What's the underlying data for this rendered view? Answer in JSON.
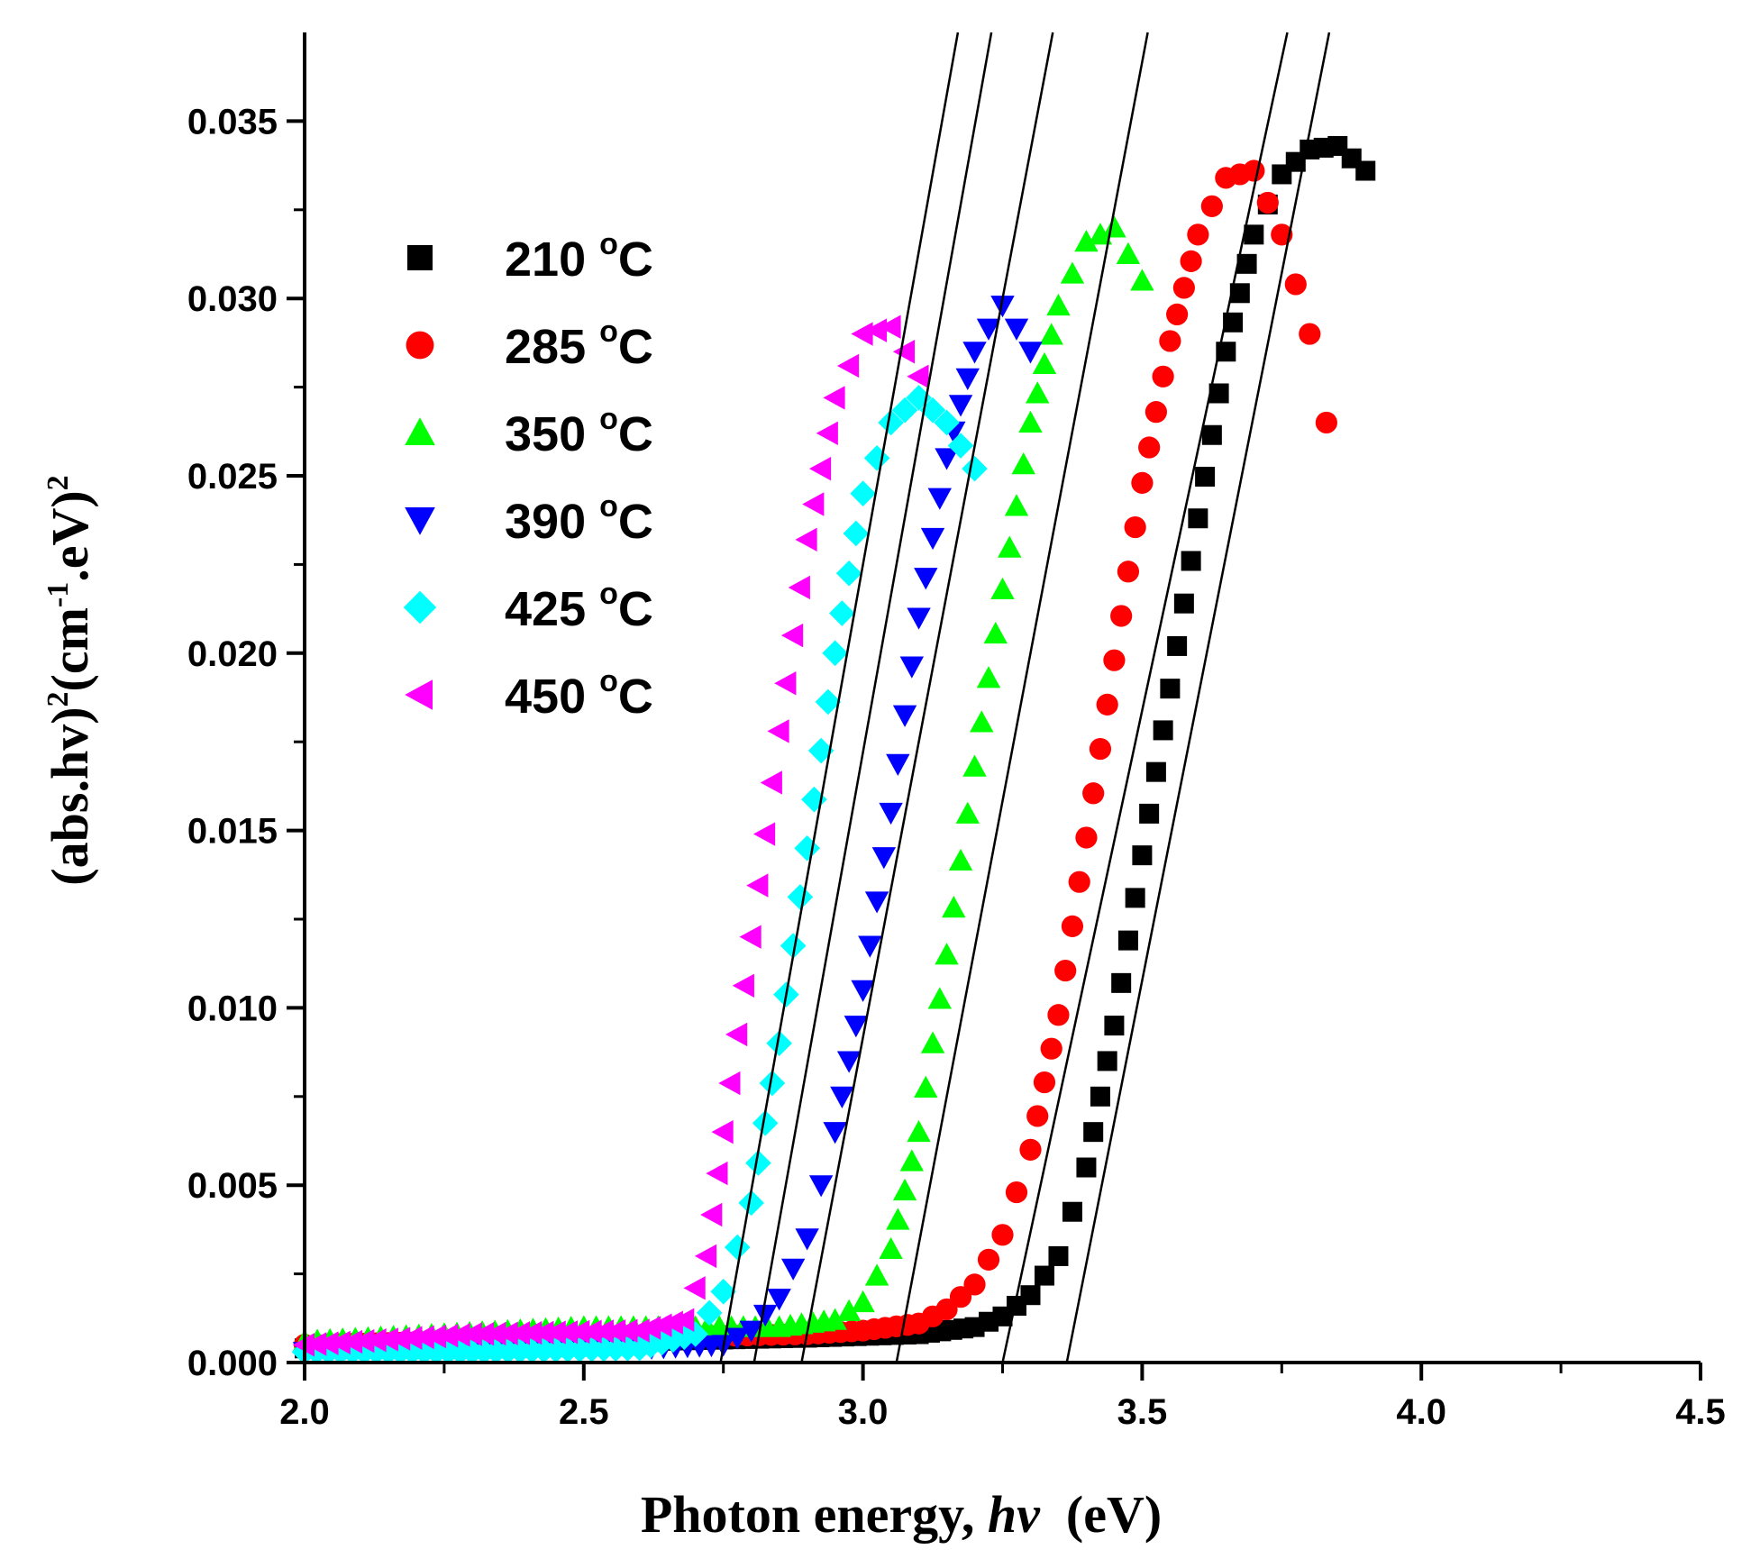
{
  "chart_data": {
    "type": "scatter",
    "title": "",
    "xlabel": {
      "prefix": "Photon energy, ",
      "italic": "hν",
      "suffix": "  (eV)"
    },
    "ylabel": {
      "part1": "(abs.hv)",
      "sup1": "2",
      "part2": "(cm",
      "sup2": "-1",
      "part3": ".eV)",
      "sup3": "2"
    },
    "xlim": [
      2.0,
      4.5
    ],
    "ylim": [
      0.0,
      0.0375
    ],
    "xticks": [
      2.0,
      2.5,
      3.0,
      3.5,
      4.0,
      4.5
    ],
    "xtick_labels": [
      "2.0",
      "2.5",
      "3.0",
      "3.5",
      "4.0",
      "4.5"
    ],
    "yticks": [
      0.0,
      0.005,
      0.01,
      0.015,
      0.02,
      0.025,
      0.03,
      0.035
    ],
    "ytick_labels": [
      "0.000",
      "0.005",
      "0.010",
      "0.015",
      "0.020",
      "0.025",
      "0.030",
      "0.035"
    ],
    "legend_position": "upper-left",
    "series": [
      {
        "name": "210",
        "unit_sup": "o",
        "unit": "C",
        "marker": "square",
        "color": "#000000",
        "points": [
          [
            2.0,
            0.0004
          ],
          [
            2.3,
            0.0005
          ],
          [
            2.6,
            0.0006
          ],
          [
            2.9,
            0.0007
          ],
          [
            3.1,
            0.0008
          ],
          [
            3.2,
            0.001
          ],
          [
            3.25,
            0.0013
          ],
          [
            3.3,
            0.0019
          ],
          [
            3.35,
            0.003
          ],
          [
            3.4,
            0.0055
          ],
          [
            3.45,
            0.0095
          ],
          [
            3.5,
            0.0143
          ],
          [
            3.55,
            0.019
          ],
          [
            3.6,
            0.0238
          ],
          [
            3.65,
            0.0285
          ],
          [
            3.7,
            0.0318
          ],
          [
            3.75,
            0.0335
          ],
          [
            3.8,
            0.0342
          ],
          [
            3.85,
            0.0343
          ],
          [
            3.9,
            0.0336
          ]
        ]
      },
      {
        "name": "285",
        "unit_sup": "o",
        "unit": "C",
        "marker": "circle",
        "color": "#ff0000",
        "points": [
          [
            2.0,
            0.0005
          ],
          [
            2.3,
            0.0006
          ],
          [
            2.6,
            0.0007
          ],
          [
            2.9,
            0.0008
          ],
          [
            3.0,
            0.0009
          ],
          [
            3.1,
            0.0011
          ],
          [
            3.15,
            0.0015
          ],
          [
            3.2,
            0.0022
          ],
          [
            3.25,
            0.0036
          ],
          [
            3.3,
            0.006
          ],
          [
            3.35,
            0.0098
          ],
          [
            3.4,
            0.0148
          ],
          [
            3.45,
            0.0198
          ],
          [
            3.5,
            0.0248
          ],
          [
            3.55,
            0.0288
          ],
          [
            3.6,
            0.0318
          ],
          [
            3.65,
            0.0334
          ],
          [
            3.7,
            0.0336
          ],
          [
            3.75,
            0.0318
          ],
          [
            3.8,
            0.029
          ],
          [
            3.83,
            0.0265
          ]
        ]
      },
      {
        "name": "350",
        "unit_sup": "o",
        "unit": "C",
        "marker": "triangle-up",
        "color": "#00ff00",
        "points": [
          [
            2.0,
            0.0006
          ],
          [
            2.25,
            0.0008
          ],
          [
            2.5,
            0.001
          ],
          [
            2.7,
            0.001
          ],
          [
            2.85,
            0.001
          ],
          [
            2.95,
            0.0012
          ],
          [
            3.0,
            0.0017
          ],
          [
            3.05,
            0.0032
          ],
          [
            3.1,
            0.0065
          ],
          [
            3.15,
            0.0115
          ],
          [
            3.2,
            0.0168
          ],
          [
            3.25,
            0.0218
          ],
          [
            3.3,
            0.0265
          ],
          [
            3.35,
            0.0298
          ],
          [
            3.4,
            0.0316
          ],
          [
            3.45,
            0.032
          ],
          [
            3.5,
            0.0305
          ]
        ]
      },
      {
        "name": "390",
        "unit_sup": "o",
        "unit": "C",
        "marker": "triangle-down",
        "color": "#0000ff",
        "points": [
          [
            2.0,
            0.0003
          ],
          [
            2.3,
            0.0003
          ],
          [
            2.6,
            0.0004
          ],
          [
            2.75,
            0.0005
          ],
          [
            2.8,
            0.0009
          ],
          [
            2.85,
            0.0018
          ],
          [
            2.9,
            0.0035
          ],
          [
            2.95,
            0.0065
          ],
          [
            3.0,
            0.0105
          ],
          [
            3.05,
            0.0155
          ],
          [
            3.1,
            0.021
          ],
          [
            3.15,
            0.0255
          ],
          [
            3.2,
            0.0285
          ],
          [
            3.25,
            0.0298
          ],
          [
            3.3,
            0.0285
          ]
        ]
      },
      {
        "name": "425",
        "unit_sup": "o",
        "unit": "C",
        "marker": "diamond",
        "color": "#00ffff",
        "points": [
          [
            2.0,
            0.0003
          ],
          [
            2.3,
            0.0003
          ],
          [
            2.6,
            0.0004
          ],
          [
            2.7,
            0.0008
          ],
          [
            2.75,
            0.002
          ],
          [
            2.8,
            0.0045
          ],
          [
            2.85,
            0.009
          ],
          [
            2.9,
            0.0145
          ],
          [
            2.95,
            0.02
          ],
          [
            3.0,
            0.0245
          ],
          [
            3.05,
            0.0265
          ],
          [
            3.1,
            0.0272
          ],
          [
            3.15,
            0.0265
          ],
          [
            3.2,
            0.0252
          ]
        ]
      },
      {
        "name": "450",
        "unit_sup": "o",
        "unit": "C",
        "marker": "triangle-left",
        "color": "#ff00ff",
        "points": [
          [
            2.0,
            0.0005
          ],
          [
            2.3,
            0.0008
          ],
          [
            2.6,
            0.0009
          ],
          [
            2.68,
            0.0012
          ],
          [
            2.72,
            0.003
          ],
          [
            2.75,
            0.0065
          ],
          [
            2.8,
            0.012
          ],
          [
            2.85,
            0.0178
          ],
          [
            2.9,
            0.0232
          ],
          [
            2.95,
            0.0272
          ],
          [
            3.0,
            0.029
          ],
          [
            3.05,
            0.0292
          ],
          [
            3.1,
            0.0278
          ]
        ]
      }
    ],
    "fit_lines": [
      {
        "x0": 2.745,
        "x1": 3.17
      },
      {
        "x0": 2.805,
        "x1": 3.23
      },
      {
        "x0": 2.89,
        "x1": 3.34
      },
      {
        "x0": 3.06,
        "x1": 3.51
      },
      {
        "x0": 3.25,
        "x1": 3.76
      },
      {
        "x0": 3.365,
        "x1": 3.835
      }
    ],
    "fit_y_top": 0.0375
  }
}
